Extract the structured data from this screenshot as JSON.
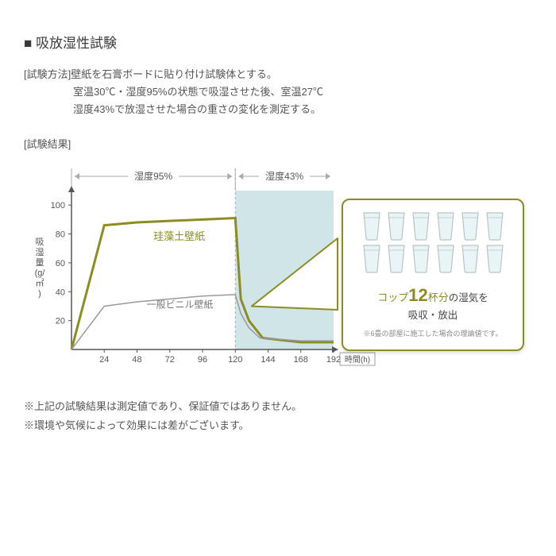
{
  "title": "■ 吸放湿性試験",
  "method": {
    "label": "[試験方法]",
    "line1": "壁紙を石膏ボードに貼り付け試験体とする。",
    "line2": "室温30℃・湿度95%の状態で吸湿させた後、室温27℃",
    "line3": "湿度43%で放湿させた場合の重さの変化を測定する。"
  },
  "result_label": "[試験結果]",
  "chart": {
    "type": "line",
    "x": {
      "ticks": [
        24,
        48,
        72,
        96,
        120,
        144,
        168,
        192
      ],
      "label": "時間(h)",
      "xlim": [
        0,
        192
      ]
    },
    "y": {
      "ticks": [
        20,
        40,
        60,
        80,
        100
      ],
      "label": "吸湿量(g/㎡)",
      "ylim": [
        0,
        110
      ]
    },
    "zones": [
      {
        "label": "湿度95%",
        "from": 0,
        "to": 120,
        "fill": "none"
      },
      {
        "label": "湿度43%",
        "from": 120,
        "to": 192,
        "fill": "#cfe5e8"
      }
    ],
    "series": [
      {
        "name": "珪藻土壁紙",
        "color": "#8c8c20",
        "width": 3,
        "points": [
          [
            0,
            0
          ],
          [
            24,
            86
          ],
          [
            48,
            88
          ],
          [
            72,
            89
          ],
          [
            96,
            90
          ],
          [
            120,
            91
          ],
          [
            124,
            35
          ],
          [
            130,
            20
          ],
          [
            140,
            8
          ],
          [
            168,
            5
          ],
          [
            192,
            5
          ]
        ]
      },
      {
        "name": "一般ビニル壁紙",
        "color": "#9a9a9a",
        "width": 1.5,
        "points": [
          [
            0,
            0
          ],
          [
            24,
            30
          ],
          [
            48,
            33
          ],
          [
            72,
            35
          ],
          [
            96,
            37
          ],
          [
            120,
            38
          ],
          [
            124,
            25
          ],
          [
            130,
            15
          ],
          [
            138,
            8
          ],
          [
            168,
            6
          ],
          [
            192,
            6
          ]
        ]
      }
    ],
    "series_labels": [
      {
        "text": "珪藻土壁紙",
        "color": "#8c8c20",
        "x": 60,
        "y": 76,
        "fontsize": 13
      },
      {
        "text": "一般ビニル壁紙",
        "color": "#777777",
        "x": 55,
        "y": 29,
        "fontsize": 12
      }
    ],
    "axis_color": "#555555",
    "grid_color": "#aaaaaa",
    "background_color": "#ffffff"
  },
  "callout": {
    "cup_count": 12,
    "prefix": "コップ",
    "number": "12",
    "suffix": "杯分",
    "tail": "の湿気を",
    "line2": "吸収・放出",
    "note": "※6畳の部屋に施工した場合の理論値です。",
    "accent": "#8c8c20",
    "cup_fill": "#e8f4f5",
    "cup_stroke": "#b8c4c4"
  },
  "notes": {
    "l1": "※上記の試験結果は測定値であり、保証値ではありません。",
    "l2": "※環境や気候によって効果には差がございます。"
  }
}
